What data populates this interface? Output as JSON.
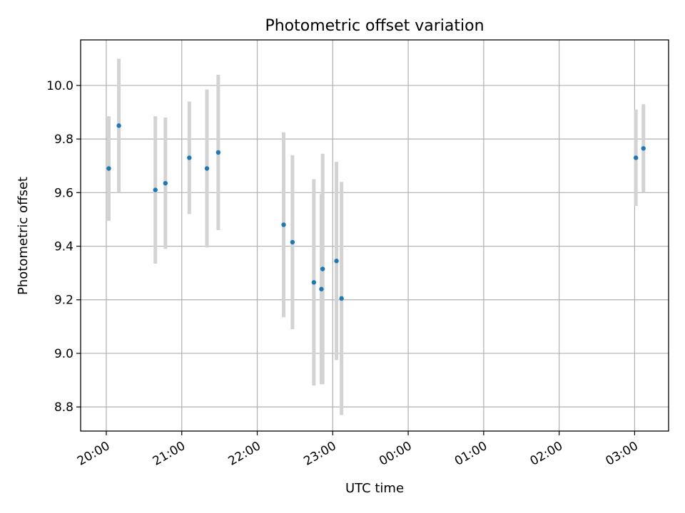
{
  "chart_data": {
    "type": "scatter",
    "title": "Photometric offset variation",
    "xlabel": "UTC time",
    "ylabel": "Photometric offset",
    "x_ticks": [
      "20:00",
      "21:00",
      "22:00",
      "23:00",
      "00:00",
      "01:00",
      "02:00",
      "03:00"
    ],
    "x_tick_hours": [
      20,
      21,
      22,
      23,
      24,
      25,
      26,
      27
    ],
    "xlim_hours": [
      19.66,
      27.45
    ],
    "y_ticks": [
      "8.8",
      "9.0",
      "9.2",
      "9.4",
      "9.6",
      "9.8",
      "10.0"
    ],
    "y_tick_values": [
      8.8,
      9.0,
      9.2,
      9.4,
      9.6,
      9.8,
      10.0
    ],
    "ylim": [
      8.71,
      10.17
    ],
    "grid": true,
    "marker_color": "#1f77b4",
    "errorbar_color": "#d3d3d3",
    "series": [
      {
        "points": [
          {
            "x": "20:02",
            "y": 9.69,
            "err": 0.195
          },
          {
            "x": "20:10",
            "y": 9.85,
            "err": 0.25
          },
          {
            "x": "20:39",
            "y": 9.61,
            "err": 0.275
          },
          {
            "x": "20:47",
            "y": 9.635,
            "err": 0.245
          },
          {
            "x": "21:06",
            "y": 9.73,
            "err": 0.21
          },
          {
            "x": "21:20",
            "y": 9.69,
            "err": 0.295
          },
          {
            "x": "21:29",
            "y": 9.75,
            "err": 0.29
          },
          {
            "x": "22:21",
            "y": 9.48,
            "err": 0.345
          },
          {
            "x": "22:28",
            "y": 9.415,
            "err": 0.325
          },
          {
            "x": "22:45",
            "y": 9.265,
            "err": 0.385
          },
          {
            "x": "22:51",
            "y": 9.24,
            "err": 0.355
          },
          {
            "x": "22:52",
            "y": 9.315,
            "err": 0.43
          },
          {
            "x": "23:03",
            "y": 9.345,
            "err": 0.37
          },
          {
            "x": "23:07",
            "y": 9.205,
            "err": 0.435
          },
          {
            "x": "03:01",
            "y": 9.73,
            "err": 0.18
          },
          {
            "x": "03:07",
            "y": 9.765,
            "err": 0.165
          }
        ]
      }
    ]
  }
}
